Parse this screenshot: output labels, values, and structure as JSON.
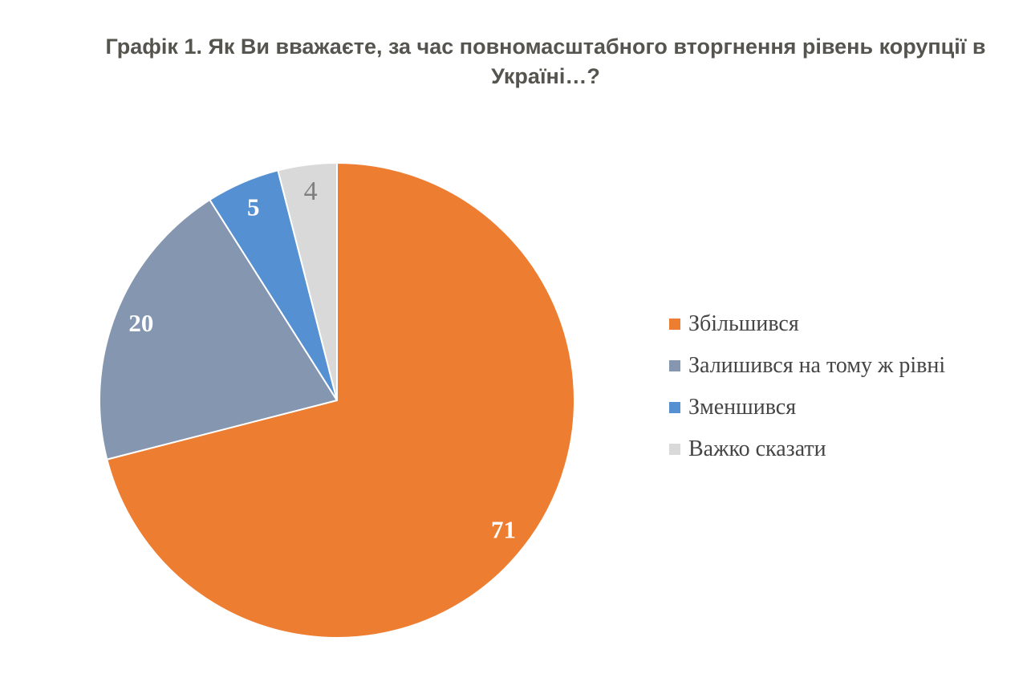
{
  "title": {
    "line1": "Графік 1. Як Ви вважаєте, за час повномасштабного вторгнення рівень корупції в",
    "line2": "Україні…?",
    "color": "#55544E"
  },
  "chart_data": {
    "type": "pie",
    "title": "Графік 1. Як Ви вважаєте, за час повномасштабного вторгнення рівень корупції в Україні…?",
    "categories": [
      "Збільшився",
      "Залишився на тому ж рівні",
      "Зменшився",
      "Важко сказати"
    ],
    "values": [
      71,
      20,
      5,
      4
    ],
    "unit": "percent",
    "colors": [
      "#ED7D31",
      "#8496B0",
      "#5591D2",
      "#D9D9D9"
    ],
    "data_label_colors": [
      "#FFFFFF",
      "#FFFFFF",
      "#FFFFFF",
      "#7F7F7F"
    ],
    "data_label_bold": [
      true,
      true,
      true,
      false
    ],
    "slice_border_color": "#FFFFFF",
    "legend_position": "right",
    "start_angle_deg": 0,
    "direction": "clockwise",
    "background": "#FFFFFF"
  }
}
